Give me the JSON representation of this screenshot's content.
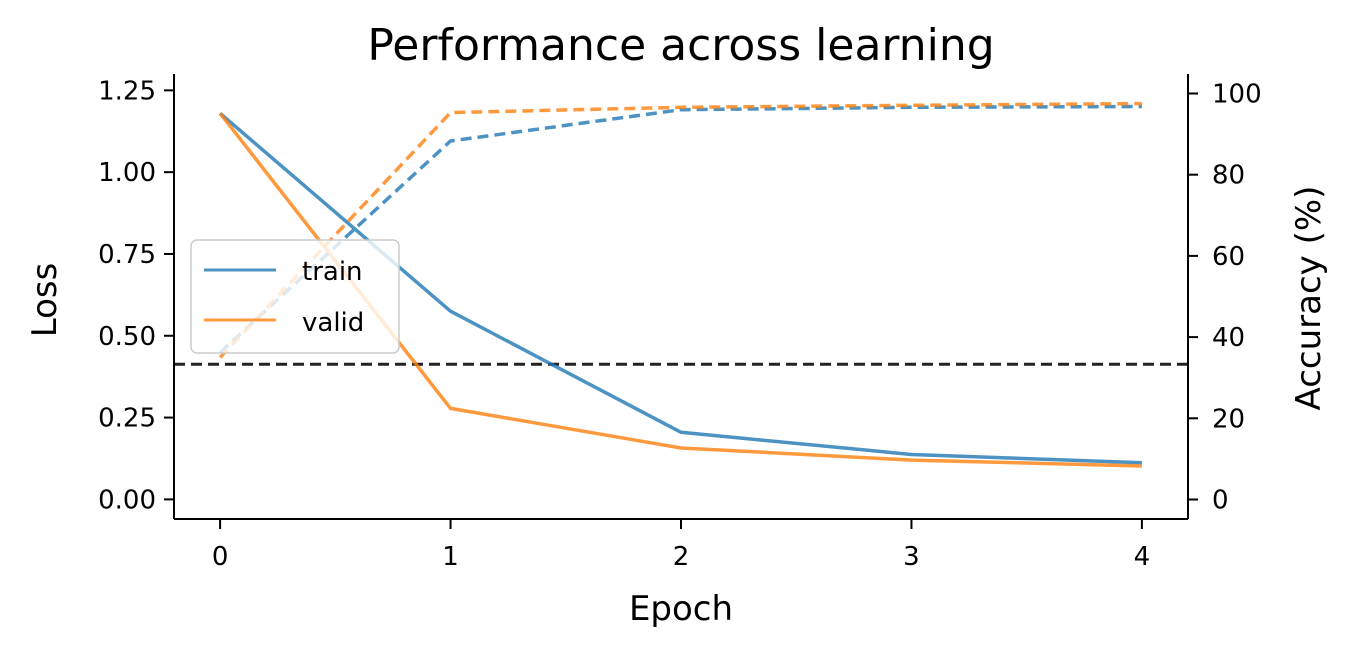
{
  "chart_data": {
    "type": "line",
    "title": "Performance across learning",
    "xlabel": "Epoch",
    "ylabel_left": "Loss",
    "ylabel_right": "Accuracy (%)",
    "x": [
      0,
      1,
      2,
      3,
      4
    ],
    "x_ticks": [
      "0",
      "1",
      "2",
      "3",
      "4"
    ],
    "xlim": [
      -0.2,
      4.2
    ],
    "ylim_left": [
      -0.06,
      1.3
    ],
    "ylim_right": [
      -4.8,
      104.8
    ],
    "y_ticks_left": [
      {
        "value": 0.0,
        "label": "0.00"
      },
      {
        "value": 0.25,
        "label": "0.25"
      },
      {
        "value": 0.5,
        "label": "0.50"
      },
      {
        "value": 0.75,
        "label": "0.75"
      },
      {
        "value": 1.0,
        "label": "1.00"
      },
      {
        "value": 1.25,
        "label": "1.25"
      }
    ],
    "y_ticks_right": [
      {
        "value": 0,
        "label": "0"
      },
      {
        "value": 20,
        "label": "20"
      },
      {
        "value": 40,
        "label": "40"
      },
      {
        "value": 60,
        "label": "60"
      },
      {
        "value": 80,
        "label": "80"
      },
      {
        "value": 100,
        "label": "100"
      }
    ],
    "series": [
      {
        "name": "train",
        "axis": "left",
        "style": "solid",
        "color": "#1f77b4",
        "values": [
          1.18,
          0.575,
          0.205,
          0.137,
          0.112
        ]
      },
      {
        "name": "valid",
        "axis": "left",
        "style": "solid",
        "color": "#ff7f0e",
        "values": [
          1.18,
          0.278,
          0.157,
          0.12,
          0.102
        ]
      },
      {
        "axis": "right",
        "style": "dashed",
        "color": "#1f77b4",
        "values": [
          36.2,
          88.3,
          96.0,
          96.6,
          96.8
        ]
      },
      {
        "axis": "right",
        "style": "dashed",
        "color": "#ff7f0e",
        "values": [
          35.0,
          95.3,
          96.6,
          97.1,
          97.5
        ]
      }
    ],
    "reference_line": {
      "axis": "right",
      "value": 33.3,
      "style": "dashed",
      "color": "#222222"
    },
    "legend": {
      "position": "center-left",
      "entries": [
        "train",
        "valid"
      ]
    },
    "grid": false
  }
}
